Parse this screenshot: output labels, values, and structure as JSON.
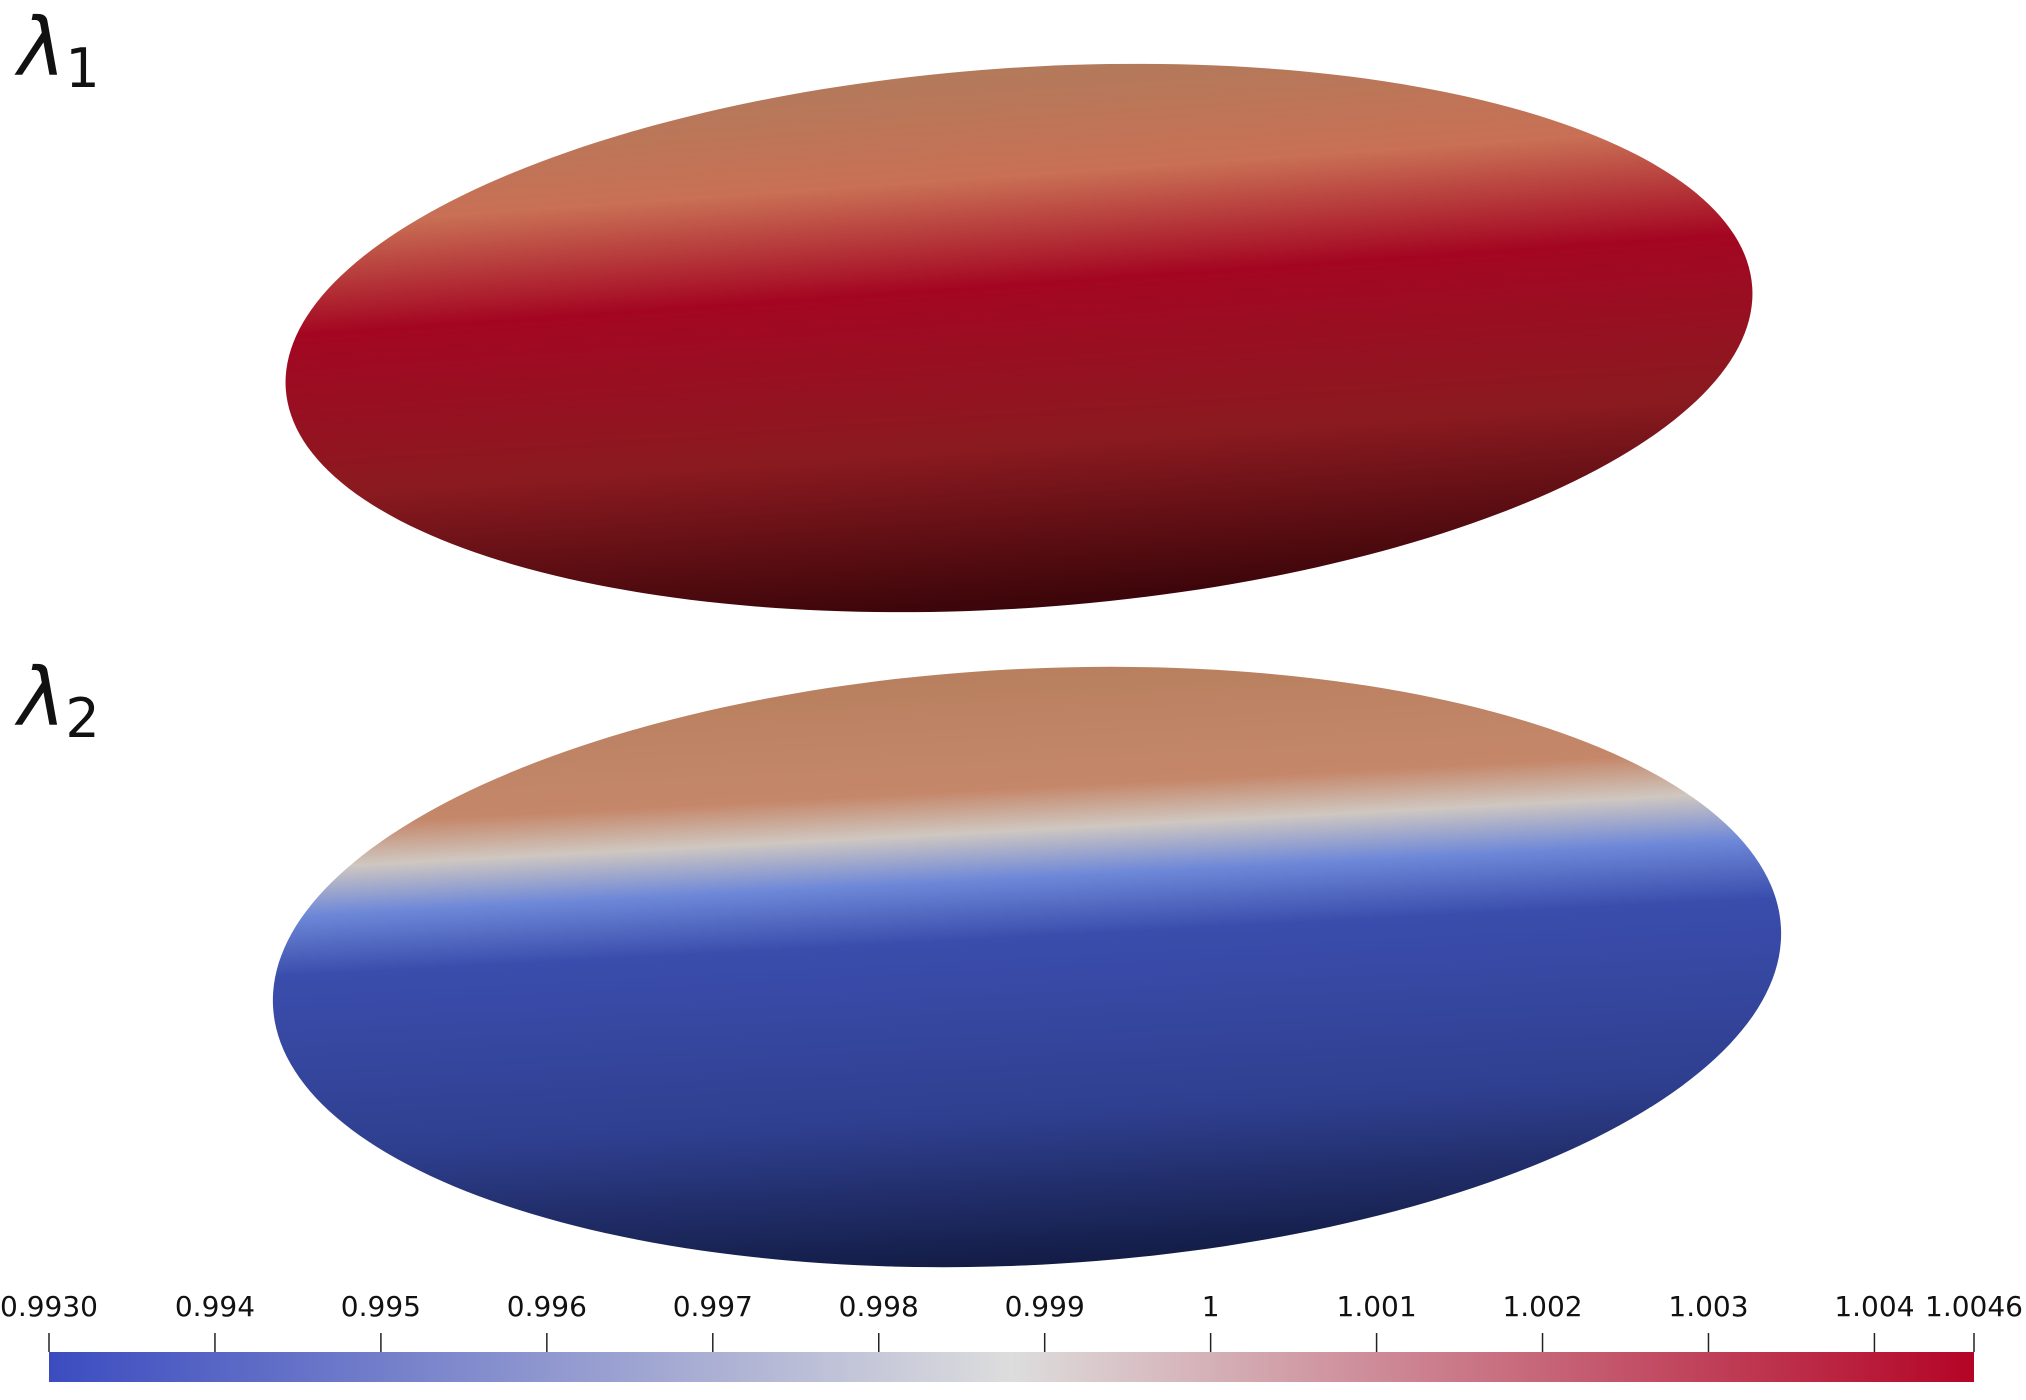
{
  "panels": [
    {
      "symbol": "λ",
      "subscript": "1"
    },
    {
      "symbol": "λ",
      "subscript": "2"
    }
  ],
  "colorbar": {
    "lim": [
      0.993,
      1.0046
    ],
    "ticks": [
      {
        "value": 0.993,
        "label": "0.9930"
      },
      0.994,
      0.995,
      0.996,
      0.997,
      0.998,
      0.999,
      1,
      1.001,
      1.002,
      1.003,
      1.004,
      1.0046
    ],
    "colors": [
      "#3b4cc0",
      "#dddddd",
      "#b40426"
    ]
  }
}
